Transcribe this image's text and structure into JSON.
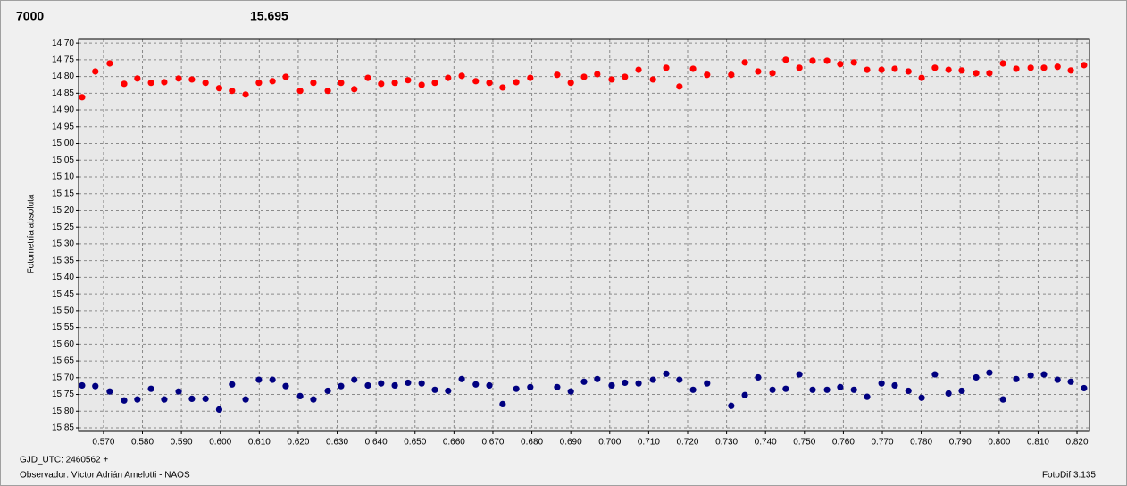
{
  "chart_data": {
    "type": "scatter",
    "y_label": "Fotometría absoluta",
    "x_label": "GJD_UTC: 2460562 +",
    "xlim": [
      0.5636,
      0.8232
    ],
    "ylim": [
      14.689,
      15.858
    ],
    "y_inverted": true,
    "grid": true,
    "xticks": [
      {
        "value": 0.57,
        "label": "0.570"
      },
      {
        "value": 0.58,
        "label": "0.580"
      },
      {
        "value": 0.59,
        "label": "0.590"
      },
      {
        "value": 0.6,
        "label": "0.600"
      },
      {
        "value": 0.61,
        "label": "0.610"
      },
      {
        "value": 0.62,
        "label": "0.620"
      },
      {
        "value": 0.63,
        "label": "0.630"
      },
      {
        "value": 0.64,
        "label": "0.640"
      },
      {
        "value": 0.65,
        "label": "0.650"
      },
      {
        "value": 0.66,
        "label": "0.660"
      },
      {
        "value": 0.67,
        "label": "0.670"
      },
      {
        "value": 0.68,
        "label": "0.680"
      },
      {
        "value": 0.69,
        "label": "0.690"
      },
      {
        "value": 0.7,
        "label": "0.700"
      },
      {
        "value": 0.71,
        "label": "0.710"
      },
      {
        "value": 0.72,
        "label": "0.720"
      },
      {
        "value": 0.73,
        "label": "0.730"
      },
      {
        "value": 0.74,
        "label": "0.740"
      },
      {
        "value": 0.75,
        "label": "0.750"
      },
      {
        "value": 0.76,
        "label": "0.760"
      },
      {
        "value": 0.77,
        "label": "0.770"
      },
      {
        "value": 0.78,
        "label": "0.780"
      },
      {
        "value": 0.79,
        "label": "0.790"
      },
      {
        "value": 0.8,
        "label": "0.800"
      },
      {
        "value": 0.81,
        "label": "0.810"
      },
      {
        "value": 0.82,
        "label": "0.820"
      }
    ],
    "yticks": [
      {
        "value": 14.7,
        "label": "14.70"
      },
      14.75,
      {
        "value": 14.8,
        "label": "14.80"
      },
      14.85,
      {
        "value": 14.9,
        "label": "14.90"
      },
      14.95,
      {
        "value": 15,
        "label": "15.00"
      },
      15.05,
      {
        "value": 15.1,
        "label": "15.10"
      },
      15.15,
      {
        "value": 15.2,
        "label": "15.20"
      },
      15.25,
      {
        "value": 15.3,
        "label": "15.30"
      },
      15.35,
      {
        "value": 15.4,
        "label": "15.40"
      },
      15.45,
      {
        "value": 15.5,
        "label": "15.50"
      },
      15.55,
      {
        "value": 15.6,
        "label": "15.60"
      },
      15.65,
      {
        "value": 15.7,
        "label": "15.70"
      },
      15.75,
      {
        "value": 15.8,
        "label": "15.80"
      },
      15.85
    ],
    "x": [
      0.5645,
      0.5679,
      0.5716,
      0.5753,
      0.5787,
      0.5822,
      0.5856,
      0.5893,
      0.5927,
      0.5962,
      0.5997,
      0.603,
      0.6065,
      0.6099,
      0.6134,
      0.6168,
      0.6205,
      0.6239,
      0.6276,
      0.631,
      0.6344,
      0.6379,
      0.6413,
      0.6448,
      0.6482,
      0.6517,
      0.6551,
      0.6585,
      0.662,
      0.6656,
      0.6691,
      0.6725,
      0.676,
      0.6796,
      0.6865,
      0.69,
      0.6934,
      0.6968,
      0.7005,
      0.7039,
      0.7074,
      0.7111,
      0.7145,
      0.7179,
      0.7214,
      0.725,
      0.7312,
      0.7347,
      0.7381,
      0.7418,
      0.7452,
      0.7487,
      0.7521,
      0.7558,
      0.7592,
      0.7627,
      0.7661,
      0.7698,
      0.7732,
      0.7767,
      0.7801,
      0.7835,
      0.787,
      0.7904,
      0.7941,
      0.7975,
      0.801,
      0.8044,
      0.8081,
      0.8115,
      0.815,
      0.8184,
      0.8218
    ],
    "series": [
      {
        "name": "7000",
        "color": "#ff0000",
        "values": [
          14.862,
          14.785,
          14.761,
          14.822,
          14.806,
          14.819,
          14.817,
          14.806,
          14.809,
          14.819,
          14.835,
          14.843,
          14.854,
          14.819,
          14.814,
          14.801,
          14.843,
          14.819,
          14.843,
          14.819,
          14.838,
          14.804,
          14.822,
          14.819,
          14.811,
          14.825,
          14.819,
          14.804,
          14.798,
          14.814,
          14.819,
          14.833,
          14.817,
          14.804,
          14.795,
          14.819,
          14.801,
          14.793,
          14.809,
          14.801,
          14.78,
          14.809,
          14.774,
          14.83,
          14.777,
          14.795,
          14.795,
          14.758,
          14.785,
          14.79,
          14.75,
          14.774,
          14.753,
          14.753,
          14.763,
          14.758,
          14.78,
          14.78,
          14.777,
          14.785,
          14.804,
          14.774,
          14.78,
          14.782,
          14.79,
          14.79,
          14.761,
          14.777,
          14.774,
          14.774,
          14.771,
          14.782,
          14.766
        ]
      },
      {
        "name": "15.695",
        "color": "#000080",
        "values": [
          15.723,
          15.725,
          15.741,
          15.768,
          15.765,
          15.733,
          15.765,
          15.741,
          15.763,
          15.763,
          15.795,
          15.72,
          15.765,
          15.706,
          15.706,
          15.725,
          15.755,
          15.765,
          15.739,
          15.725,
          15.706,
          15.723,
          15.717,
          15.723,
          15.715,
          15.717,
          15.736,
          15.739,
          15.704,
          15.72,
          15.723,
          15.779,
          15.733,
          15.728,
          15.728,
          15.741,
          15.712,
          15.704,
          15.723,
          15.715,
          15.717,
          15.706,
          15.688,
          15.706,
          15.736,
          15.717,
          15.784,
          15.752,
          15.699,
          15.736,
          15.733,
          15.69,
          15.736,
          15.736,
          15.728,
          15.736,
          15.757,
          15.717,
          15.723,
          15.739,
          15.76,
          15.69,
          15.747,
          15.739,
          15.699,
          15.685,
          15.765,
          15.704,
          15.693,
          15.69,
          15.706,
          15.712,
          15.731
        ]
      }
    ]
  },
  "footer": {
    "observer": "Observador: Víctor Adrián Amelotti - NAOS",
    "software": "FotoDif 3.135"
  }
}
